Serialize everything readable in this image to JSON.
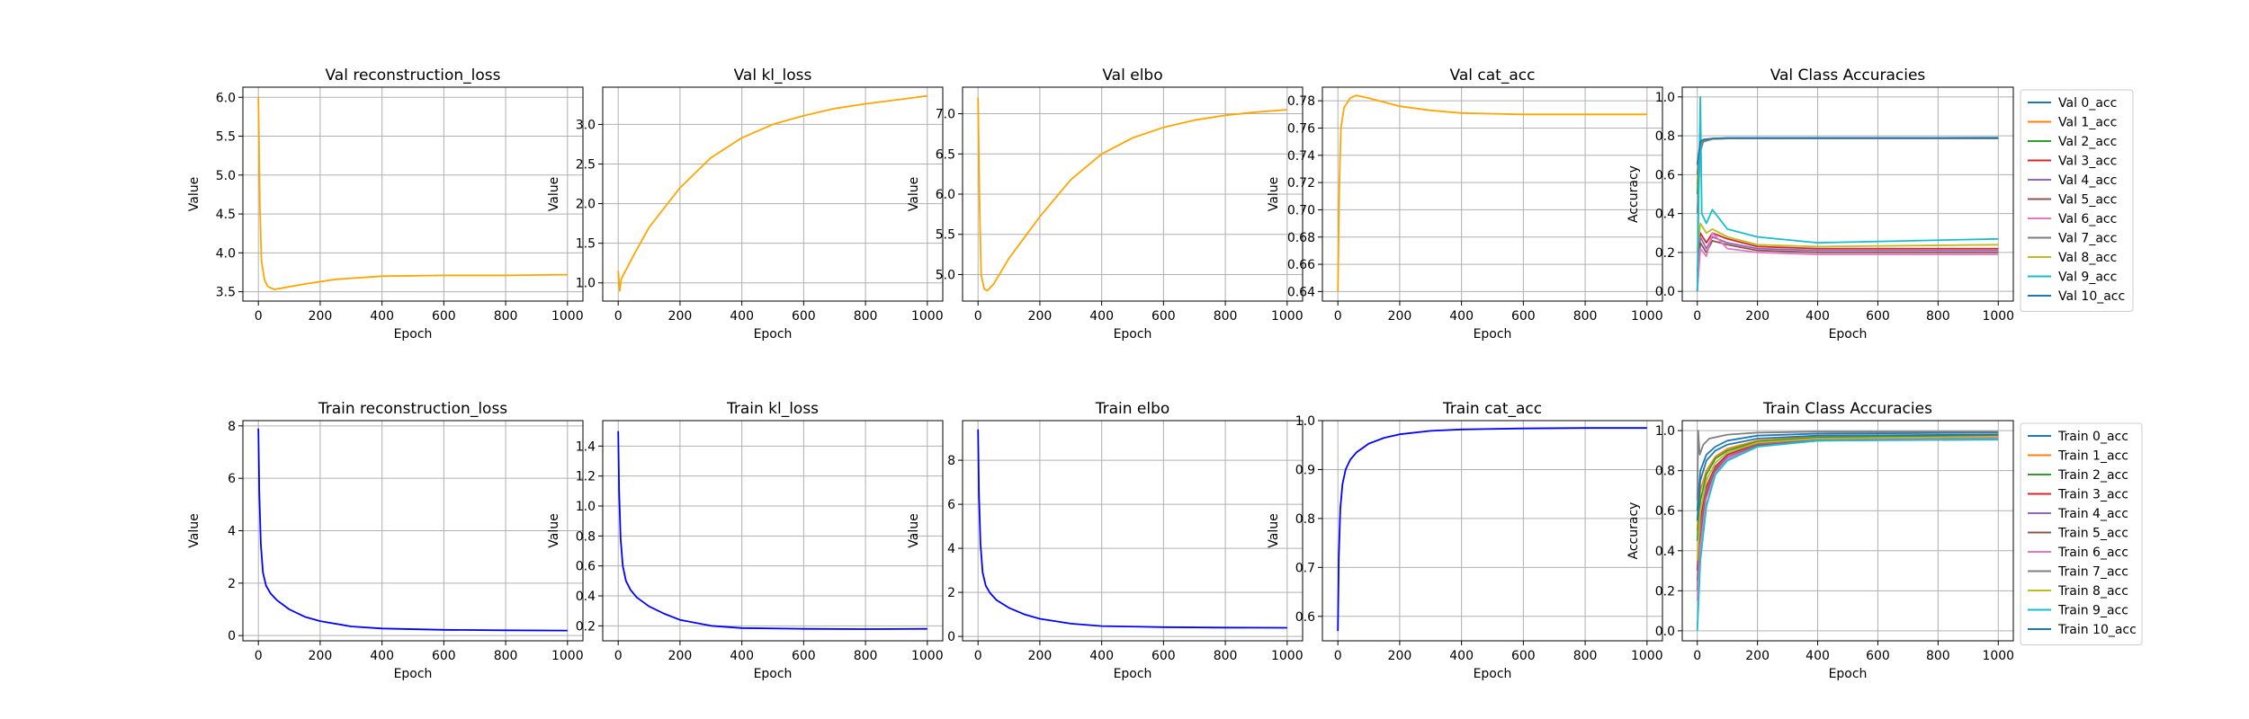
{
  "colors": {
    "val_line": "#ffa500",
    "train_line": "#0000ff",
    "grid": "#b0b0b0",
    "class_palette": [
      "#1f77b4",
      "#ff7f0e",
      "#2ca02c",
      "#d62728",
      "#9467bd",
      "#8c564b",
      "#e377c2",
      "#7f7f7f",
      "#bcbd22",
      "#17becf",
      "#1f77b4"
    ]
  },
  "chart_data": [
    {
      "type": "line",
      "title": "Val reconstruction_loss",
      "xlabel": "Epoch",
      "ylabel": "Value",
      "xlim": [
        -50,
        1050
      ],
      "ylim": [
        3.38,
        6.13
      ],
      "xticks": [
        0,
        200,
        400,
        600,
        800,
        1000
      ],
      "yticks": [
        3.5,
        4.0,
        4.5,
        5.0,
        5.5,
        6.0
      ],
      "grid": true,
      "color": "#ffa500",
      "series": [
        {
          "x": [
            0,
            5,
            10,
            20,
            30,
            50,
            80,
            150,
            250,
            400,
            600,
            800,
            1000
          ],
          "y": [
            6.0,
            4.6,
            3.9,
            3.65,
            3.57,
            3.53,
            3.55,
            3.6,
            3.66,
            3.7,
            3.71,
            3.71,
            3.72
          ]
        }
      ]
    },
    {
      "type": "line",
      "title": "Val kl_loss",
      "xlabel": "Epoch",
      "ylabel": "Value",
      "xlim": [
        -50,
        1050
      ],
      "ylim": [
        0.77,
        3.47
      ],
      "xticks": [
        0,
        200,
        400,
        600,
        800,
        1000
      ],
      "yticks": [
        1.0,
        1.5,
        2.0,
        2.5,
        3.0
      ],
      "grid": true,
      "color": "#ffa500",
      "series": [
        {
          "x": [
            0,
            5,
            10,
            50,
            100,
            200,
            300,
            400,
            500,
            600,
            700,
            800,
            900,
            1000
          ],
          "y": [
            1.15,
            0.9,
            1.05,
            1.35,
            1.7,
            2.2,
            2.58,
            2.83,
            3.0,
            3.11,
            3.2,
            3.26,
            3.31,
            3.36
          ]
        }
      ]
    },
    {
      "type": "line",
      "title": "Val elbo",
      "xlabel": "Epoch",
      "ylabel": "Value",
      "xlim": [
        -50,
        1050
      ],
      "ylim": [
        4.67,
        7.33
      ],
      "xticks": [
        0,
        200,
        400,
        600,
        800,
        1000
      ],
      "yticks": [
        5.0,
        5.5,
        6.0,
        6.5,
        7.0
      ],
      "grid": true,
      "color": "#ffa500",
      "series": [
        {
          "x": [
            0,
            5,
            10,
            20,
            30,
            50,
            100,
            200,
            300,
            400,
            500,
            600,
            700,
            800,
            900,
            1000
          ],
          "y": [
            7.2,
            5.9,
            5.0,
            4.82,
            4.8,
            4.88,
            5.2,
            5.72,
            6.18,
            6.5,
            6.7,
            6.83,
            6.92,
            6.98,
            7.02,
            7.05
          ]
        }
      ]
    },
    {
      "type": "line",
      "title": "Val cat_acc",
      "xlabel": "Epoch",
      "ylabel": "Value",
      "xlim": [
        -50,
        1050
      ],
      "ylim": [
        0.633,
        0.79
      ],
      "xticks": [
        0,
        200,
        400,
        600,
        800,
        1000
      ],
      "yticks": [
        0.64,
        0.66,
        0.68,
        0.7,
        0.72,
        0.74,
        0.76,
        0.78
      ],
      "grid": true,
      "color": "#ffa500",
      "series": [
        {
          "x": [
            0,
            5,
            10,
            20,
            40,
            60,
            100,
            200,
            300,
            400,
            600,
            800,
            1000
          ],
          "y": [
            0.64,
            0.72,
            0.76,
            0.775,
            0.782,
            0.784,
            0.782,
            0.776,
            0.773,
            0.771,
            0.77,
            0.77,
            0.77
          ]
        }
      ]
    },
    {
      "type": "line",
      "title": "Val Class Accuracies",
      "xlabel": "Epoch",
      "ylabel": "Accuracy",
      "xlim": [
        -50,
        1050
      ],
      "ylim": [
        -0.05,
        1.05
      ],
      "xticks": [
        0,
        200,
        400,
        600,
        800,
        1000
      ],
      "yticks": [
        0.0,
        0.2,
        0.4,
        0.6,
        0.8,
        1.0
      ],
      "grid": true,
      "legend": "outside-right",
      "series": [
        {
          "name": "Val 0_acc",
          "x": [
            0,
            10,
            20,
            50,
            100,
            1000
          ],
          "y": [
            0.6,
            0.76,
            0.78,
            0.785,
            0.788,
            0.79
          ]
        },
        {
          "name": "Val 1_acc",
          "x": [
            0,
            10,
            20,
            50,
            100,
            1000
          ],
          "y": [
            0.55,
            0.75,
            0.78,
            0.785,
            0.787,
            0.788
          ]
        },
        {
          "name": "Val 2_acc",
          "x": [
            0,
            10,
            20,
            50,
            100,
            1000
          ],
          "y": [
            0.5,
            0.74,
            0.77,
            0.784,
            0.786,
            0.787
          ]
        },
        {
          "name": "Val 3_acc",
          "x": [
            0,
            10,
            30,
            50,
            100,
            200,
            400,
            1000
          ],
          "y": [
            0.1,
            0.3,
            0.25,
            0.3,
            0.27,
            0.23,
            0.22,
            0.22
          ]
        },
        {
          "name": "Val 4_acc",
          "x": [
            0,
            10,
            30,
            50,
            100,
            200,
            400,
            1000
          ],
          "y": [
            0.05,
            0.28,
            0.22,
            0.28,
            0.25,
            0.22,
            0.21,
            0.21
          ]
        },
        {
          "name": "Val 5_acc",
          "x": [
            0,
            10,
            30,
            50,
            100,
            200,
            400,
            1000
          ],
          "y": [
            0.0,
            0.25,
            0.2,
            0.26,
            0.24,
            0.21,
            0.2,
            0.2
          ]
        },
        {
          "name": "Val 6_acc",
          "x": [
            0,
            10,
            30,
            50,
            100,
            200,
            400,
            1000
          ],
          "y": [
            0.0,
            0.22,
            0.18,
            0.3,
            0.22,
            0.2,
            0.19,
            0.19
          ]
        },
        {
          "name": "Val 7_acc",
          "x": [
            0,
            10,
            20,
            50,
            100,
            1000
          ],
          "y": [
            0.4,
            0.72,
            0.77,
            0.784,
            0.786,
            0.786
          ]
        },
        {
          "name": "Val 8_acc",
          "x": [
            0,
            10,
            30,
            50,
            100,
            200,
            400,
            1000
          ],
          "y": [
            0.2,
            0.35,
            0.3,
            0.32,
            0.28,
            0.24,
            0.23,
            0.24
          ]
        },
        {
          "name": "Val 9_acc",
          "x": [
            0,
            10,
            15,
            30,
            50,
            100,
            200,
            400,
            1000
          ],
          "y": [
            0.0,
            1.0,
            0.4,
            0.35,
            0.42,
            0.32,
            0.28,
            0.25,
            0.27
          ]
        },
        {
          "name": "Val 10_acc",
          "x": [
            0,
            10,
            20,
            50,
            100,
            1000
          ],
          "y": [
            0.65,
            0.77,
            0.78,
            0.786,
            0.789,
            0.79
          ]
        }
      ]
    },
    {
      "type": "line",
      "title": "Train reconstruction_loss",
      "xlabel": "Epoch",
      "ylabel": "Value",
      "xlim": [
        -50,
        1050
      ],
      "ylim": [
        -0.2,
        8.2
      ],
      "xticks": [
        0,
        200,
        400,
        600,
        800,
        1000
      ],
      "yticks": [
        0,
        2,
        4,
        6,
        8
      ],
      "grid": true,
      "color": "#0000ff",
      "series": [
        {
          "x": [
            0,
            3,
            8,
            15,
            25,
            40,
            60,
            100,
            150,
            200,
            300,
            400,
            600,
            800,
            1000
          ],
          "y": [
            7.9,
            5.5,
            3.5,
            2.4,
            1.9,
            1.6,
            1.35,
            1.0,
            0.72,
            0.55,
            0.35,
            0.27,
            0.22,
            0.2,
            0.19
          ]
        }
      ]
    },
    {
      "type": "line",
      "title": "Train kl_loss",
      "xlabel": "Epoch",
      "ylabel": "Value",
      "xlim": [
        -50,
        1050
      ],
      "ylim": [
        0.1,
        1.57
      ],
      "xticks": [
        0,
        200,
        400,
        600,
        800,
        1000
      ],
      "yticks": [
        0.2,
        0.4,
        0.6,
        0.8,
        1.0,
        1.2,
        1.4
      ],
      "grid": true,
      "color": "#0000ff",
      "series": [
        {
          "x": [
            0,
            3,
            8,
            15,
            25,
            40,
            60,
            100,
            150,
            200,
            300,
            400,
            600,
            800,
            1000
          ],
          "y": [
            1.5,
            1.1,
            0.78,
            0.6,
            0.5,
            0.44,
            0.39,
            0.33,
            0.28,
            0.24,
            0.2,
            0.185,
            0.18,
            0.178,
            0.18
          ]
        }
      ]
    },
    {
      "type": "line",
      "title": "Train elbo",
      "xlabel": "Epoch",
      "ylabel": "Value",
      "xlim": [
        -50,
        1050
      ],
      "ylim": [
        -0.2,
        9.8
      ],
      "xticks": [
        0,
        200,
        400,
        600,
        800,
        1000
      ],
      "yticks": [
        0,
        2,
        4,
        6,
        8
      ],
      "grid": true,
      "color": "#0000ff",
      "series": [
        {
          "x": [
            0,
            3,
            8,
            15,
            25,
            40,
            60,
            100,
            150,
            200,
            300,
            400,
            600,
            800,
            1000
          ],
          "y": [
            9.4,
            6.5,
            4.2,
            2.9,
            2.3,
            1.95,
            1.65,
            1.3,
            1.0,
            0.8,
            0.58,
            0.47,
            0.42,
            0.4,
            0.39
          ]
        }
      ]
    },
    {
      "type": "line",
      "title": "Train cat_acc",
      "xlabel": "Epoch",
      "ylabel": "Value",
      "xlim": [
        -50,
        1050
      ],
      "ylim": [
        0.55,
        1.0
      ],
      "xticks": [
        0,
        200,
        400,
        600,
        800,
        1000
      ],
      "yticks": [
        0.6,
        0.7,
        0.8,
        0.9,
        1.0
      ],
      "grid": true,
      "color": "#0000ff",
      "series": [
        {
          "x": [
            0,
            3,
            8,
            15,
            25,
            40,
            60,
            100,
            150,
            200,
            300,
            400,
            600,
            800,
            1000
          ],
          "y": [
            0.57,
            0.72,
            0.82,
            0.87,
            0.9,
            0.92,
            0.935,
            0.953,
            0.965,
            0.972,
            0.979,
            0.982,
            0.984,
            0.985,
            0.985
          ]
        }
      ]
    },
    {
      "type": "line",
      "title": "Train Class Accuracies",
      "xlabel": "Epoch",
      "ylabel": "Accuracy",
      "xlim": [
        -50,
        1050
      ],
      "ylim": [
        -0.05,
        1.05
      ],
      "xticks": [
        0,
        200,
        400,
        600,
        800,
        1000
      ],
      "yticks": [
        0.0,
        0.2,
        0.4,
        0.6,
        0.8,
        1.0
      ],
      "grid": true,
      "legend": "outside-right",
      "series": [
        {
          "name": "Train 0_acc",
          "x": [
            0,
            10,
            30,
            60,
            100,
            200,
            400,
            1000
          ],
          "y": [
            0.6,
            0.8,
            0.88,
            0.92,
            0.95,
            0.975,
            0.985,
            0.99
          ]
        },
        {
          "name": "Train 1_acc",
          "x": [
            0,
            10,
            30,
            60,
            100,
            200,
            400,
            1000
          ],
          "y": [
            0.5,
            0.7,
            0.8,
            0.87,
            0.91,
            0.95,
            0.97,
            0.98
          ]
        },
        {
          "name": "Train 2_acc",
          "x": [
            0,
            10,
            30,
            60,
            100,
            200,
            400,
            1000
          ],
          "y": [
            0.45,
            0.65,
            0.78,
            0.86,
            0.9,
            0.945,
            0.965,
            0.975
          ]
        },
        {
          "name": "Train 3_acc",
          "x": [
            0,
            10,
            30,
            60,
            100,
            200,
            400,
            1000
          ],
          "y": [
            0.3,
            0.55,
            0.72,
            0.82,
            0.88,
            0.935,
            0.96,
            0.97
          ]
        },
        {
          "name": "Train 4_acc",
          "x": [
            0,
            10,
            30,
            60,
            100,
            200,
            400,
            1000
          ],
          "y": [
            0.25,
            0.5,
            0.7,
            0.81,
            0.87,
            0.93,
            0.955,
            0.965
          ]
        },
        {
          "name": "Train 5_acc",
          "x": [
            0,
            10,
            30,
            60,
            100,
            200,
            400,
            1000
          ],
          "y": [
            0.2,
            0.45,
            0.68,
            0.8,
            0.86,
            0.925,
            0.95,
            0.96
          ]
        },
        {
          "name": "Train 6_acc",
          "x": [
            0,
            10,
            30,
            60,
            100,
            200,
            400,
            1000
          ],
          "y": [
            0.15,
            0.42,
            0.66,
            0.79,
            0.86,
            0.92,
            0.95,
            0.96
          ]
        },
        {
          "name": "Train 7_acc",
          "x": [
            0,
            3,
            8,
            20,
            40,
            100,
            200,
            400,
            1000
          ],
          "y": [
            0.65,
            1.0,
            0.88,
            0.93,
            0.96,
            0.98,
            0.99,
            0.995,
            0.995
          ]
        },
        {
          "name": "Train 8_acc",
          "x": [
            0,
            10,
            30,
            60,
            100,
            200,
            400,
            1000
          ],
          "y": [
            0.35,
            0.6,
            0.75,
            0.84,
            0.89,
            0.94,
            0.96,
            0.97
          ]
        },
        {
          "name": "Train 9_acc",
          "x": [
            0,
            10,
            30,
            60,
            100,
            200,
            400,
            1000
          ],
          "y": [
            0.0,
            0.35,
            0.62,
            0.78,
            0.85,
            0.92,
            0.95,
            0.955
          ]
        },
        {
          "name": "Train 10_acc",
          "x": [
            0,
            10,
            30,
            60,
            100,
            200,
            400,
            1000
          ],
          "y": [
            0.55,
            0.75,
            0.85,
            0.9,
            0.93,
            0.96,
            0.975,
            0.98
          ]
        }
      ]
    }
  ]
}
